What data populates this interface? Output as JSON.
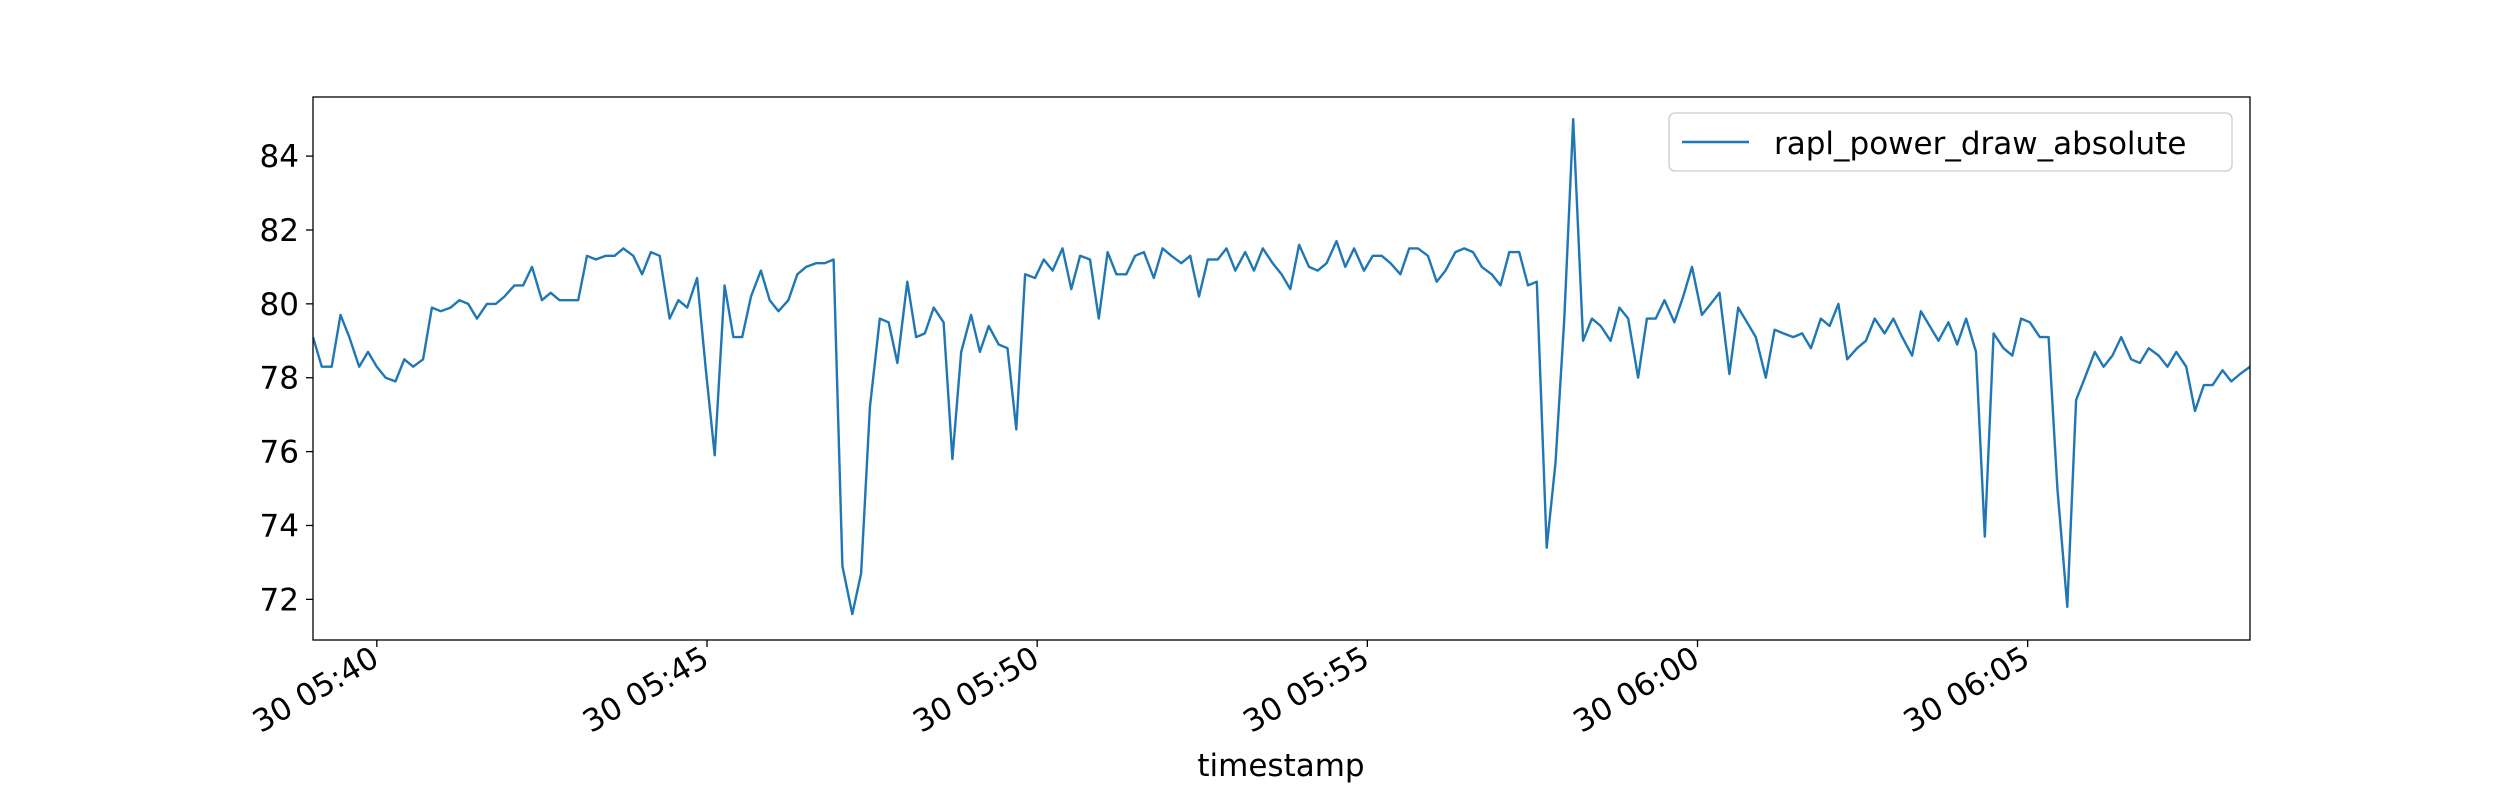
{
  "chart_data": {
    "type": "line",
    "xlabel": "timestamp",
    "x": [
      "30 05:39:02",
      "30 05:39:10",
      "30 05:39:19",
      "30 05:39:27",
      "30 05:39:35",
      "30 05:39:44",
      "30 05:39:52",
      "30 05:40:00",
      "30 05:40:08",
      "30 05:40:17",
      "30 05:40:25",
      "30 05:40:33",
      "30 05:40:42",
      "30 05:40:50",
      "30 05:40:58",
      "30 05:41:07",
      "30 05:41:15",
      "30 05:41:23",
      "30 05:41:31",
      "30 05:41:40",
      "30 05:41:48",
      "30 05:41:56",
      "30 05:42:05",
      "30 05:42:13",
      "30 05:42:21",
      "30 05:42:30",
      "30 05:42:38",
      "30 05:42:46",
      "30 05:42:54",
      "30 05:43:03",
      "30 05:43:11",
      "30 05:43:19",
      "30 05:43:28",
      "30 05:43:36",
      "30 05:43:44",
      "30 05:43:53",
      "30 05:44:01",
      "30 05:44:09",
      "30 05:44:17",
      "30 05:44:26",
      "30 05:44:34",
      "30 05:44:42",
      "30 05:44:51",
      "30 05:44:59",
      "30 05:45:07",
      "30 05:45:16",
      "30 05:45:24",
      "30 05:45:32",
      "30 05:45:40",
      "30 05:45:49",
      "30 05:45:57",
      "30 05:46:05",
      "30 05:46:14",
      "30 05:46:22",
      "30 05:46:30",
      "30 05:46:39",
      "30 05:46:47",
      "30 05:46:55",
      "30 05:47:03",
      "30 05:47:12",
      "30 05:47:20",
      "30 05:47:28",
      "30 05:47:37",
      "30 05:47:45",
      "30 05:47:53",
      "30 05:48:02",
      "30 05:48:10",
      "30 05:48:18",
      "30 05:48:26",
      "30 05:48:35",
      "30 05:48:43",
      "30 05:48:51",
      "30 05:49:00",
      "30 05:49:08",
      "30 05:49:16",
      "30 05:49:25",
      "30 05:49:33",
      "30 05:49:41",
      "30 05:49:49",
      "30 05:49:58",
      "30 05:50:06",
      "30 05:50:14",
      "30 05:50:23",
      "30 05:50:31",
      "30 05:50:39",
      "30 05:50:48",
      "30 05:50:56",
      "30 05:51:04",
      "30 05:51:12",
      "30 05:51:21",
      "30 05:51:29",
      "30 05:51:37",
      "30 05:51:46",
      "30 05:51:54",
      "30 05:52:02",
      "30 05:52:11",
      "30 05:52:19",
      "30 05:52:27",
      "30 05:52:35",
      "30 05:52:44",
      "30 05:52:52",
      "30 05:53:00",
      "30 05:53:09",
      "30 05:53:17",
      "30 05:53:25",
      "30 05:53:34",
      "30 05:53:42",
      "30 05:53:50",
      "30 05:53:58",
      "30 05:54:07",
      "30 05:54:15",
      "30 05:54:23",
      "30 05:54:32",
      "30 05:54:40",
      "30 05:54:48",
      "30 05:54:57",
      "30 05:55:05",
      "30 05:55:13",
      "30 05:55:21",
      "30 05:55:30",
      "30 05:55:38",
      "30 05:55:46",
      "30 05:55:55",
      "30 05:56:03",
      "30 05:56:11",
      "30 05:56:20",
      "30 05:56:28",
      "30 05:56:36",
      "30 05:56:44",
      "30 05:56:53",
      "30 05:57:01",
      "30 05:57:09",
      "30 05:57:18",
      "30 05:57:26",
      "30 05:57:34",
      "30 05:57:43",
      "30 05:57:51",
      "30 05:57:59",
      "30 05:58:07",
      "30 05:58:16",
      "30 05:58:24",
      "30 05:58:32",
      "30 05:58:41",
      "30 05:58:49",
      "30 05:58:57",
      "30 05:59:06",
      "30 05:59:14",
      "30 05:59:22",
      "30 05:59:30",
      "30 05:59:39",
      "30 05:59:47",
      "30 05:59:55",
      "30 06:00:04",
      "30 06:00:12",
      "30 06:00:20",
      "30 06:00:29",
      "30 06:00:37",
      "30 06:00:45",
      "30 06:00:53",
      "30 06:01:02",
      "30 06:01:10",
      "30 06:01:18",
      "30 06:01:27",
      "30 06:01:35",
      "30 06:01:43",
      "30 06:01:52",
      "30 06:02:00",
      "30 06:02:08",
      "30 06:02:16",
      "30 06:02:25",
      "30 06:02:33",
      "30 06:02:41",
      "30 06:02:50",
      "30 06:02:58",
      "30 06:03:06",
      "30 06:03:15",
      "30 06:03:23",
      "30 06:03:31",
      "30 06:03:39",
      "30 06:03:48",
      "30 06:03:56",
      "30 06:04:04",
      "30 06:04:13",
      "30 06:04:21",
      "30 06:04:29",
      "30 06:04:38",
      "30 06:04:46",
      "30 06:04:54",
      "30 06:05:02",
      "30 06:05:11",
      "30 06:05:19",
      "30 06:05:27",
      "30 06:05:36",
      "30 06:05:44",
      "30 06:05:52",
      "30 06:06:01",
      "30 06:06:09",
      "30 06:06:17",
      "30 06:06:25",
      "30 06:06:34",
      "30 06:06:42",
      "30 06:06:50",
      "30 06:06:59",
      "30 06:07:07",
      "30 06:07:15",
      "30 06:07:24",
      "30 06:07:32",
      "30 06:07:40",
      "30 06:07:48",
      "30 06:07:57",
      "30 06:08:05",
      "30 06:08:13",
      "30 06:08:22"
    ],
    "series": [
      {
        "name": "rapl_power_draw_absolute",
        "color": "#1f77b4",
        "values": [
          79.1,
          78.3,
          78.3,
          79.7,
          79.1,
          78.3,
          78.7,
          78.3,
          78.0,
          77.9,
          78.5,
          78.3,
          78.5,
          79.9,
          79.8,
          79.9,
          80.1,
          80.0,
          79.6,
          80.0,
          80.0,
          80.2,
          80.5,
          80.5,
          81.0,
          80.1,
          80.3,
          80.1,
          80.1,
          80.1,
          81.3,
          81.2,
          81.3,
          81.3,
          81.5,
          81.3,
          80.8,
          81.4,
          81.3,
          79.6,
          80.1,
          79.9,
          80.7,
          78.2,
          75.9,
          80.5,
          79.1,
          79.1,
          80.2,
          80.9,
          80.1,
          79.8,
          80.1,
          80.8,
          81.0,
          81.1,
          81.1,
          81.2,
          72.9,
          71.6,
          72.7,
          77.2,
          79.6,
          79.5,
          78.4,
          80.6,
          79.1,
          79.2,
          79.9,
          79.5,
          75.8,
          78.7,
          79.7,
          78.7,
          79.4,
          78.9,
          78.8,
          76.6,
          80.8,
          80.7,
          81.2,
          80.9,
          81.5,
          80.4,
          81.3,
          81.2,
          79.6,
          81.4,
          80.8,
          80.8,
          81.3,
          81.4,
          80.7,
          81.5,
          81.3,
          81.1,
          81.3,
          80.2,
          81.2,
          81.2,
          81.5,
          80.9,
          81.4,
          80.9,
          81.5,
          81.1,
          80.8,
          80.4,
          81.6,
          81.0,
          80.9,
          81.1,
          81.7,
          81.0,
          81.5,
          80.9,
          81.3,
          81.3,
          81.1,
          80.8,
          81.5,
          81.5,
          81.3,
          80.6,
          80.9,
          81.4,
          81.5,
          81.4,
          81.0,
          80.8,
          80.5,
          81.4,
          81.4,
          80.5,
          80.6,
          73.4,
          75.7,
          79.6,
          85.0,
          79.0,
          79.6,
          79.4,
          79.0,
          79.9,
          79.6,
          78.0,
          79.6,
          79.6,
          80.1,
          79.5,
          80.2,
          81.0,
          79.7,
          80.0,
          80.3,
          78.1,
          79.9,
          79.5,
          79.1,
          78.0,
          79.3,
          79.2,
          79.1,
          79.2,
          78.8,
          79.6,
          79.4,
          80.0,
          78.5,
          78.8,
          79.0,
          79.6,
          79.2,
          79.6,
          79.1,
          78.6,
          79.8,
          79.4,
          79.0,
          79.5,
          78.9,
          79.6,
          78.7,
          73.7,
          79.2,
          78.8,
          78.6,
          79.6,
          79.5,
          79.1,
          79.1,
          75.0,
          71.8,
          77.4,
          78.0,
          78.7,
          78.3,
          78.6,
          79.1,
          78.5,
          78.4,
          78.8,
          78.6,
          78.3,
          78.7,
          78.3,
          77.1,
          77.8,
          77.8,
          78.2,
          77.9,
          78.1,
          78.3
        ]
      }
    ],
    "xlim": [
      "30 05:39:02",
      "30 06:08:22"
    ],
    "xticks": [
      "30 05:40",
      "30 05:45",
      "30 05:50",
      "30 05:55",
      "30 06:00",
      "30 06:05"
    ],
    "ylim": [
      70.9,
      85.6
    ],
    "yticks": [
      72,
      74,
      76,
      78,
      80,
      82,
      84
    ],
    "grid": false,
    "legend": "upper right"
  }
}
